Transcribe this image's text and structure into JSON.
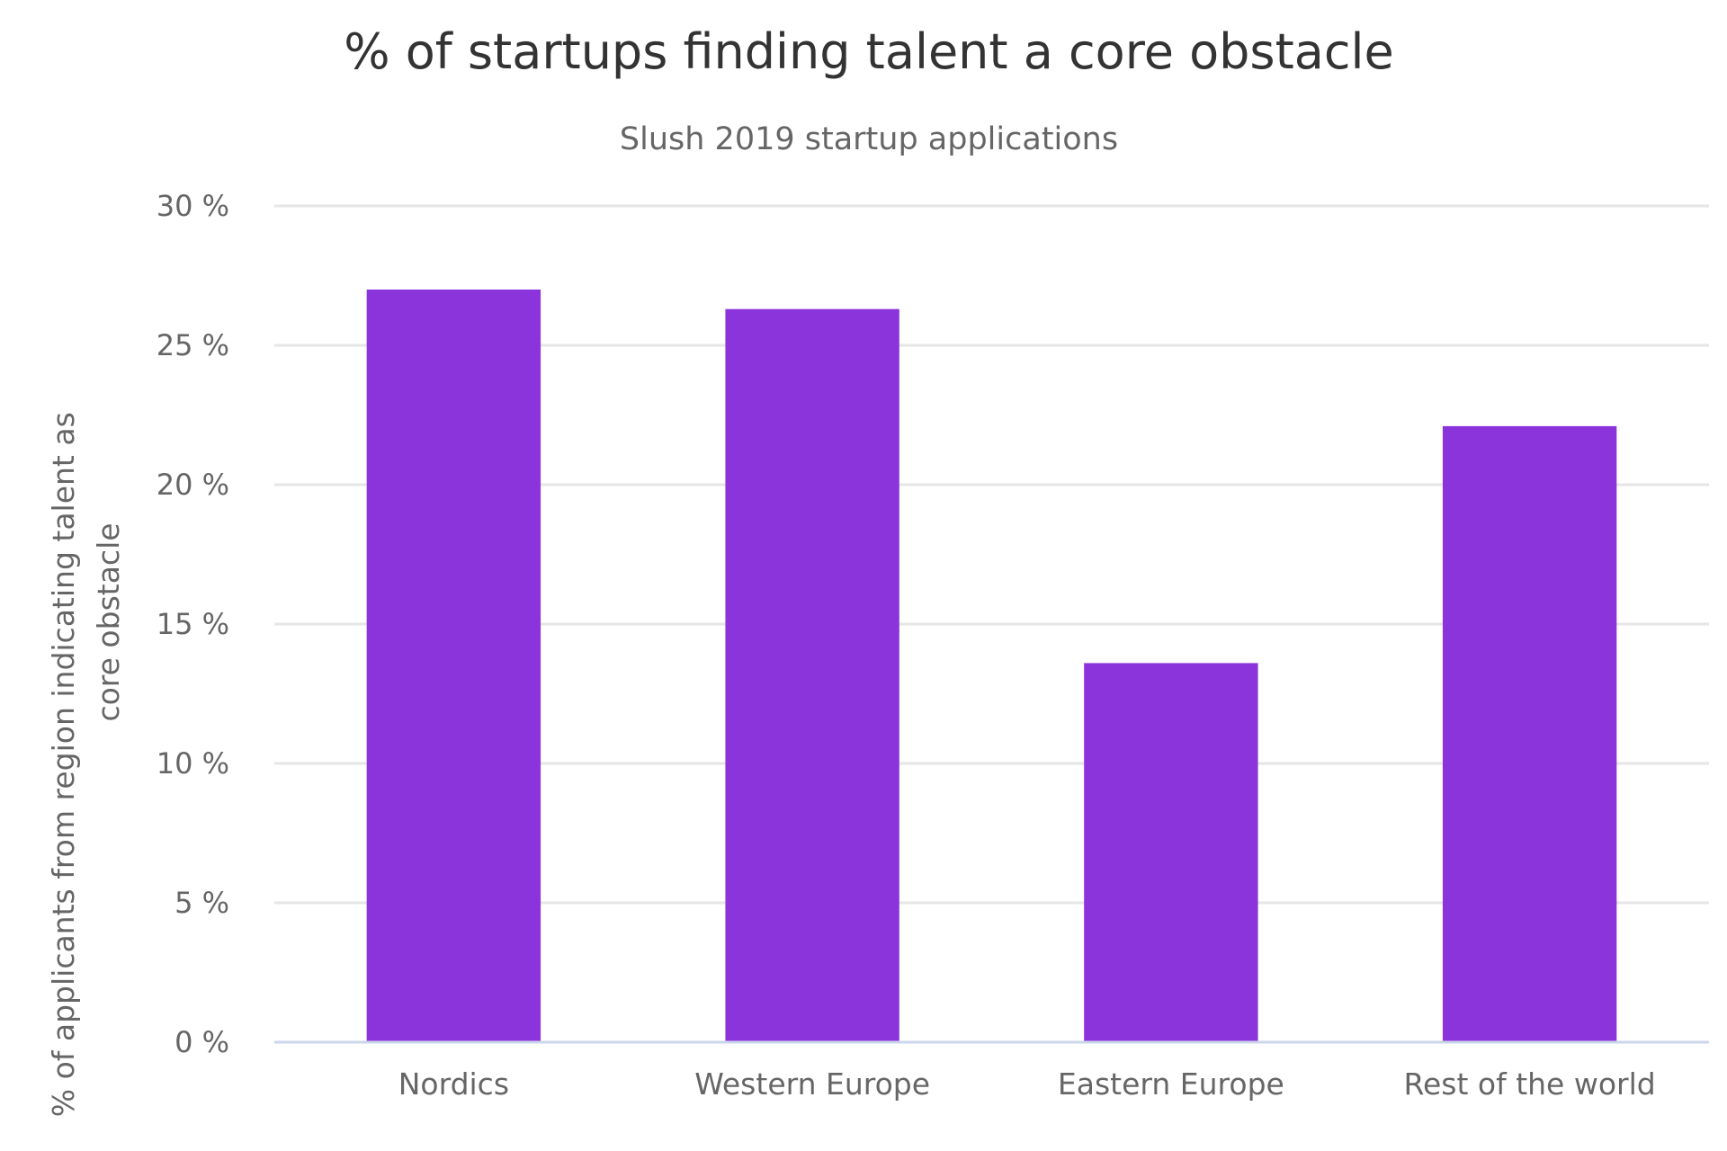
{
  "chart_data": {
    "type": "bar",
    "title": "% of startups finding talent a core obstacle",
    "subtitle": "Slush 2019 startup applications",
    "ylabel": "% of applicants from region indicating talent as core obstacle",
    "ylabel_lines": [
      "% of applicants from region indicating talent as",
      "core obstacle"
    ],
    "xlabel": "",
    "categories": [
      "Nordics",
      "Western Europe",
      "Eastern Europe",
      "Rest of the world"
    ],
    "values": [
      27.0,
      26.3,
      13.6,
      22.1
    ],
    "ylim": [
      0,
      30
    ],
    "yticks": [
      0,
      5,
      10,
      15,
      20,
      25,
      30
    ],
    "ytick_labels": [
      "0 %",
      "5 %",
      "10 %",
      "15 %",
      "20 %",
      "25 %",
      "30 %"
    ],
    "grid": true,
    "legend": "none",
    "colors": {
      "bar": "#8c34dc",
      "grid": "#e6e6e6",
      "axis": "#ccd6eb",
      "title": "#333333",
      "text": "#666666"
    }
  }
}
